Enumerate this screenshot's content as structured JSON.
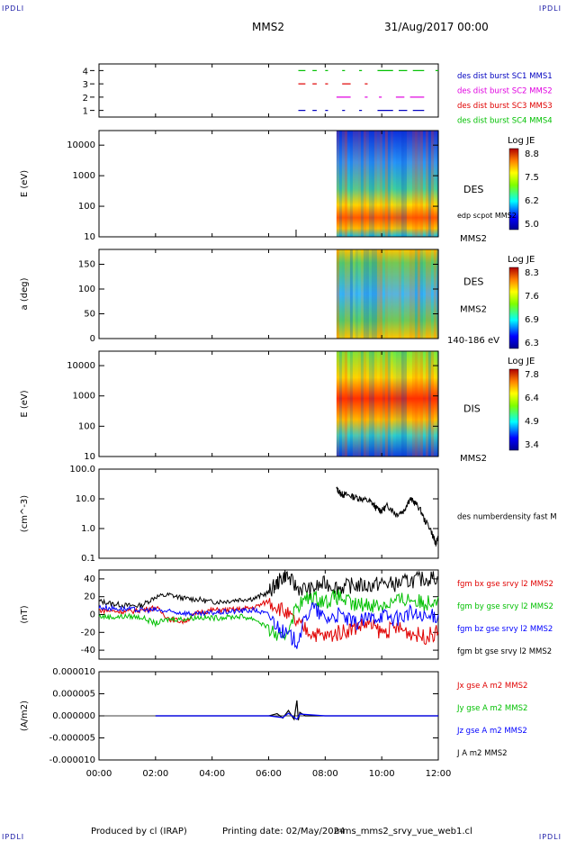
{
  "corner_label": "IPDLI",
  "header": {
    "spacecraft": "MMS2",
    "date": "31/Aug/2017 00:00"
  },
  "footer": {
    "produced_by": "Produced by cl (IRAP)",
    "printing_date": "Printing date: 02/May/2024",
    "file": "mms_mms2_srvy_vue_web1.cl"
  },
  "colors": {
    "mms1": "#00c000",
    "mms2": "#e000e0",
    "mms3": "#e00000",
    "mms4": "#00c000",
    "fgm_bx": "#e00000",
    "fgm_by": "#00c000",
    "fgm_bz": "#0000ff",
    "fgm_bt": "#000000",
    "label_blue": "#0000c0"
  },
  "chart_data": {
    "time_axis": {
      "ticks": [
        "00:00",
        "02:00",
        "04:00",
        "06:00",
        "08:00",
        "10:00",
        "12:00"
      ],
      "range_hours": [
        0,
        12
      ]
    },
    "panels": [
      {
        "id": "burst",
        "type": "timeline",
        "yticks": [
          "1",
          "2",
          "3",
          "4"
        ],
        "ylim": [
          0.5,
          4.5
        ],
        "legend": [
          {
            "label": "des dist burst SC1 MMS1",
            "color": "#0000c0"
          },
          {
            "label": "des dist burst SC2 MMS2",
            "color": "#e000e0"
          },
          {
            "label": "des dist burst SC3 MMS3",
            "color": "#e00000"
          },
          {
            "label": "des dist burst SC4 MMS4",
            "color": "#00c000"
          }
        ],
        "series": [
          {
            "level": 4,
            "color": "#00c000",
            "intervals": [
              [
                7.05,
                7.3
              ],
              [
                7.55,
                7.7
              ],
              [
                8.0,
                8.1
              ],
              [
                8.6,
                8.7
              ],
              [
                9.2,
                9.3
              ],
              [
                9.85,
                10.4
              ],
              [
                10.6,
                10.9
              ],
              [
                11.1,
                11.5
              ],
              [
                11.9,
                12.0
              ]
            ]
          },
          {
            "level": 3,
            "color": "#e00000",
            "intervals": [
              [
                7.05,
                7.3
              ],
              [
                7.55,
                7.7
              ],
              [
                8.0,
                8.1
              ],
              [
                8.6,
                8.9
              ],
              [
                9.4,
                9.5
              ]
            ]
          },
          {
            "level": 2,
            "color": "#e000e0",
            "intervals": [
              [
                8.4,
                8.9
              ],
              [
                9.4,
                9.5
              ],
              [
                9.9,
                10.0
              ],
              [
                10.5,
                10.8
              ],
              [
                11.0,
                11.5
              ]
            ]
          },
          {
            "level": 1,
            "color": "#0000c0",
            "intervals": [
              [
                7.05,
                7.3
              ],
              [
                7.55,
                7.7
              ],
              [
                8.0,
                8.1
              ],
              [
                8.6,
                8.7
              ],
              [
                9.2,
                9.3
              ],
              [
                9.85,
                10.4
              ],
              [
                10.6,
                10.9
              ],
              [
                11.1,
                11.5
              ]
            ]
          }
        ]
      },
      {
        "id": "des_energy",
        "type": "heatmap",
        "ylabel": "E (eV)",
        "yscale": "log",
        "yticks": [
          "10",
          "100",
          "1000",
          "10000"
        ],
        "ylim": [
          10,
          30000
        ],
        "data_start_hour": 8.4,
        "side_label": "DES",
        "side_label2": "edp scpot MMS2",
        "sc_label": "MMS2",
        "colorbar": {
          "title": "Log JE",
          "ticks": [
            "8.8",
            "7.5",
            "6.2",
            "5.0"
          ],
          "range": [
            5.0,
            8.8
          ]
        }
      },
      {
        "id": "des_pitch",
        "type": "heatmap",
        "ylabel": "a (deg)",
        "yticks": [
          "0",
          "50",
          "100",
          "150"
        ],
        "ylim": [
          0,
          180
        ],
        "data_start_hour": 8.4,
        "side_label": "DES",
        "sc_label": "MMS2",
        "energy_label": "140-186 eV",
        "colorbar": {
          "title": "Log JE",
          "ticks": [
            "8.3",
            "7.6",
            "6.9",
            "6.3"
          ],
          "range": [
            6.3,
            8.3
          ]
        }
      },
      {
        "id": "dis_energy",
        "type": "heatmap",
        "ylabel": "E (eV)",
        "yscale": "log",
        "yticks": [
          "10",
          "100",
          "1000",
          "10000"
        ],
        "ylim": [
          10,
          30000
        ],
        "data_start_hour": 8.4,
        "side_label": "DIS",
        "sc_label": "MMS2",
        "colorbar": {
          "title": "Log JE",
          "ticks": [
            "7.8",
            "6.4",
            "4.9",
            "3.4"
          ],
          "range": [
            3.4,
            7.8
          ]
        }
      },
      {
        "id": "density",
        "type": "line",
        "ylabel": "(cm^-3)",
        "yscale": "log",
        "yticks": [
          "0.1",
          "1.0",
          "10.0",
          "100.0"
        ],
        "ylim": [
          0.1,
          100
        ],
        "legend": [
          {
            "label": "des numberdensity fast M",
            "color": "#000000"
          }
        ],
        "series": [
          {
            "name": "des numberdensity fast M",
            "color": "#000000",
            "x": [
              8.4,
              8.55,
              8.7,
              9.0,
              9.3,
              9.6,
              9.8,
              10.0,
              10.2,
              10.5,
              10.8,
              11.0,
              11.2,
              11.5,
              11.8,
              11.9,
              12.0
            ],
            "y": [
              22,
              15,
              14,
              12,
              10,
              8,
              5,
              4,
              6,
              3,
              4,
              10,
              7,
              2.0,
              0.6,
              0.3,
              0.5
            ]
          }
        ]
      },
      {
        "id": "fgm",
        "type": "line",
        "ylabel": "(nT)",
        "yticks": [
          "-40",
          "-20",
          "0",
          "20",
          "40"
        ],
        "ylim": [
          -50,
          50
        ],
        "legend": [
          {
            "label": "fgm bx gse srvy l2 MMS2",
            "color": "#e00000"
          },
          {
            "label": "fgm by gse srvy l2 MMS2",
            "color": "#00c000"
          },
          {
            "label": "fgm bz gse srvy l2 MMS2",
            "color": "#0000ff"
          },
          {
            "label": "fgm bt gse srvy l2 MMS2",
            "color": "#000000"
          }
        ],
        "series": [
          {
            "name": "fgm bt gse srvy l2 MMS2",
            "color": "#000000",
            "x": [
              0,
              0.5,
              1,
              1.5,
              2,
              2.5,
              3,
              3.5,
              4,
              4.5,
              5,
              5.5,
              6,
              6.3,
              6.6,
              7,
              7.5,
              8,
              8.5,
              9,
              9.5,
              10,
              10.5,
              11,
              11.5,
              12
            ],
            "y": [
              15,
              12,
              10,
              10,
              20,
              22,
              18,
              17,
              14,
              15,
              17,
              18,
              25,
              35,
              45,
              30,
              28,
              35,
              30,
              33,
              32,
              35,
              34,
              38,
              40,
              42
            ]
          },
          {
            "name": "fgm bx gse srvy l2 MMS2",
            "color": "#e00000",
            "x": [
              0,
              0.5,
              1,
              1.5,
              2,
              2.5,
              3,
              3.5,
              4,
              4.5,
              5,
              5.5,
              6,
              6.5,
              7,
              7.5,
              8,
              8.5,
              9,
              9.5,
              10,
              10.5,
              11,
              11.5,
              12
            ],
            "y": [
              5,
              4,
              3,
              5,
              8,
              -5,
              -8,
              2,
              5,
              5,
              6,
              8,
              15,
              5,
              -10,
              -20,
              -25,
              -20,
              -15,
              -10,
              -20,
              -15,
              -20,
              -25,
              -20
            ]
          },
          {
            "name": "fgm by gse srvy l2 MMS2",
            "color": "#00c000",
            "x": [
              0,
              0.5,
              1,
              1.5,
              2,
              2.5,
              3,
              3.5,
              4,
              4.5,
              5,
              5.5,
              6,
              6.5,
              7,
              7.5,
              8,
              8.5,
              9,
              9.5,
              10,
              10.5,
              11,
              11.5,
              12
            ],
            "y": [
              -2,
              -3,
              -2,
              -3,
              -10,
              -5,
              -5,
              -3,
              -4,
              -3,
              -2,
              -5,
              -15,
              -30,
              10,
              20,
              15,
              20,
              10,
              12,
              10,
              15,
              18,
              12,
              20
            ]
          },
          {
            "name": "fgm bz gse srvy l2 MMS2",
            "color": "#0000ff",
            "x": [
              0,
              0.5,
              1,
              1.5,
              2,
              2.5,
              3,
              3.5,
              4,
              4.5,
              5,
              5.5,
              6,
              6.5,
              7,
              7.5,
              8,
              8.5,
              9,
              9.5,
              10,
              10.5,
              11,
              11.5,
              12
            ],
            "y": [
              8,
              7,
              6,
              5,
              5,
              3,
              2,
              0,
              2,
              3,
              4,
              5,
              0,
              -20,
              -30,
              10,
              -5,
              0,
              -10,
              -5,
              0,
              -5,
              2,
              -5,
              0
            ]
          }
        ]
      },
      {
        "id": "current",
        "type": "line",
        "ylabel": "(A/m2)",
        "yticks": [
          "-0.000010",
          "-0.000005",
          "0.000000",
          "0.000005",
          "0.000010"
        ],
        "ylim": [
          -1e-05,
          1e-05
        ],
        "legend": [
          {
            "label": "Jx gse A m2 MMS2",
            "color": "#e00000"
          },
          {
            "label": "Jy gse A m2 MMS2",
            "color": "#00c000"
          },
          {
            "label": "Jz gse A m2 MMS2",
            "color": "#0000ff"
          },
          {
            "label": "J A m2 MMS2",
            "color": "#000000"
          }
        ],
        "series": [
          {
            "name": "J A m2 MMS2",
            "color": "#000000",
            "x": [
              2,
              6,
              6.3,
              6.5,
              6.7,
              6.9,
              7.0,
              7.05,
              7.1,
              7.3,
              8,
              12
            ],
            "y": [
              0,
              0,
              5e-07,
              -5e-07,
              1.2e-06,
              -8e-07,
              3.5e-06,
              -1e-06,
              8e-07,
              0,
              0,
              0
            ]
          },
          {
            "name": "Jz gse A m2 MMS2",
            "color": "#0000ff",
            "x": [
              2,
              6,
              6.5,
              6.7,
              7.0,
              7.1,
              8,
              12
            ],
            "y": [
              0,
              0,
              -4e-07,
              6e-07,
              -8e-07,
              4e-07,
              0,
              0
            ]
          }
        ]
      }
    ]
  }
}
